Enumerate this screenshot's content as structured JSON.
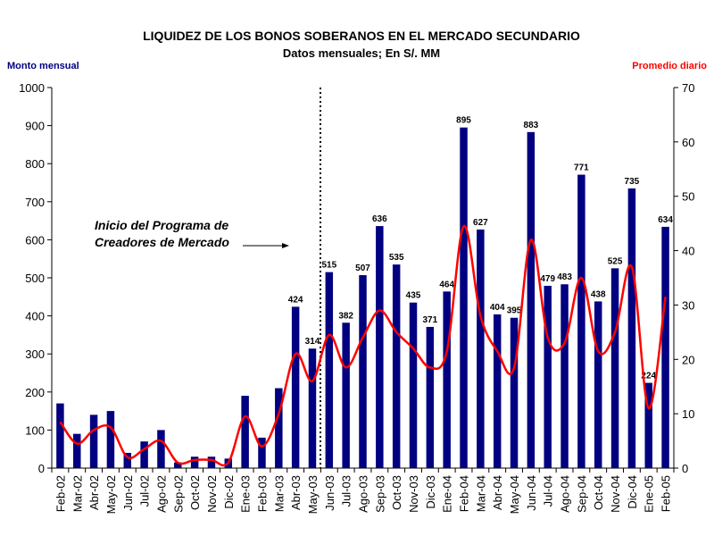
{
  "chart_data": {
    "type": "combo",
    "title": "LIQUIDEZ DE LOS BONOS SOBERANOS EN EL MERCADO SECUNDARIO",
    "subtitle": "Datos mensuales; En S/. MM",
    "y_label": "Monto mensual",
    "y2_label": "Promedio diario",
    "annotation": [
      "Inicio del Programa de",
      "Creadores de Mercado"
    ],
    "categories": [
      "Feb-02",
      "Mar-02",
      "Abr-02",
      "May-02",
      "Jun-02",
      "Jul-02",
      "Ago-02",
      "Sep-02",
      "Oct-02",
      "Nov-02",
      "Dic-02",
      "Ene-03",
      "Feb-03",
      "Mar-03",
      "Abr-03",
      "May-03",
      "Jun-03",
      "Jul-03",
      "Ago-03",
      "Sep-03",
      "Oct-03",
      "Nov-03",
      "Dic-03",
      "Ene-04",
      "Feb-04",
      "Mar-04",
      "Abr-04",
      "May-04",
      "Jun-04",
      "Jul-04",
      "Ago-04",
      "Sep-04",
      "Oct-04",
      "Nov-04",
      "Dic-04",
      "Ene-05",
      "Feb-05"
    ],
    "series": [
      {
        "name": "Monto mensual",
        "type": "bar",
        "color": "#000080",
        "values": [
          170,
          90,
          140,
          150,
          40,
          70,
          100,
          15,
          30,
          30,
          25,
          190,
          80,
          210,
          424,
          314,
          515,
          382,
          507,
          636,
          535,
          435,
          371,
          464,
          895,
          627,
          404,
          395,
          883,
          479,
          483,
          771,
          438,
          525,
          735,
          224,
          634
        ],
        "value_labels": [
          null,
          null,
          null,
          null,
          null,
          null,
          null,
          null,
          null,
          null,
          null,
          null,
          null,
          null,
          "424",
          "314",
          "515",
          "382",
          "507",
          "636",
          "535",
          "435",
          "371",
          "464",
          "895",
          "627",
          "404",
          "395",
          "883",
          "479",
          "483",
          "771",
          "438",
          "525",
          "735",
          "224",
          "634"
        ]
      },
      {
        "name": "Promedio diario",
        "type": "line",
        "axis": "y2",
        "color": "#ff0000",
        "values": [
          8.5,
          4.5,
          7,
          7.5,
          2,
          3.5,
          5,
          1,
          1.5,
          1.5,
          1,
          9.5,
          4,
          10,
          21,
          16,
          24.5,
          18.5,
          24,
          29,
          25,
          22,
          18.5,
          21.5,
          44.5,
          28,
          21.5,
          18.5,
          42,
          24,
          23,
          35,
          21.5,
          25,
          37,
          11,
          31.5
        ]
      }
    ],
    "ylim": [
      0,
      1000
    ],
    "yticks": [
      0,
      100,
      200,
      300,
      400,
      500,
      600,
      700,
      800,
      900,
      1000
    ],
    "y2lim": [
      0,
      70
    ],
    "y2ticks": [
      0,
      10,
      20,
      30,
      40,
      50,
      60,
      70
    ]
  }
}
